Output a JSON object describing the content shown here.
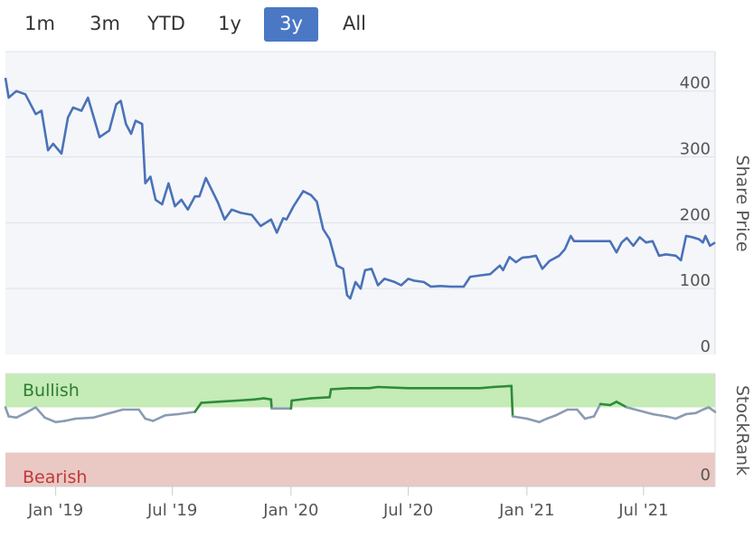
{
  "range_selector": {
    "buttons": [
      "1m",
      "3m",
      "YTD",
      "1y",
      "3y",
      "All"
    ],
    "selected": "3y",
    "accent": "#4a78c4"
  },
  "chart_data": {
    "type": "line",
    "title": "",
    "x_range": [
      "2018-10-15",
      "2021-10-20"
    ],
    "x_tick_labels": [
      {
        "label": "Jan '19",
        "date": "2019-01-01"
      },
      {
        "label": "Jul '19",
        "date": "2019-07-01"
      },
      {
        "label": "Jan '20",
        "date": "2020-01-01"
      },
      {
        "label": "Jul '20",
        "date": "2020-07-01"
      },
      {
        "label": "Jan '21",
        "date": "2021-01-01"
      },
      {
        "label": "Jul '21",
        "date": "2021-07-01"
      }
    ],
    "price_panel": {
      "ylabel": "Share Price",
      "ylim": [
        0,
        460
      ],
      "yticks": [
        0,
        100,
        200,
        300,
        400
      ],
      "color": "#4a72b8",
      "series": [
        {
          "name": "Share Price",
          "points": [
            [
              "2018-10-15",
              420
            ],
            [
              "2018-10-20",
              390
            ],
            [
              "2018-11-01",
              400
            ],
            [
              "2018-11-15",
              395
            ],
            [
              "2018-12-01",
              365
            ],
            [
              "2018-12-10",
              370
            ],
            [
              "2018-12-20",
              310
            ],
            [
              "2018-12-28",
              320
            ],
            [
              "2019-01-10",
              305
            ],
            [
              "2019-01-20",
              360
            ],
            [
              "2019-01-28",
              375
            ],
            [
              "2019-02-10",
              370
            ],
            [
              "2019-02-20",
              390
            ],
            [
              "2019-03-01",
              360
            ],
            [
              "2019-03-10",
              330
            ],
            [
              "2019-03-25",
              340
            ],
            [
              "2019-04-05",
              380
            ],
            [
              "2019-04-12",
              385
            ],
            [
              "2019-04-20",
              350
            ],
            [
              "2019-04-28",
              335
            ],
            [
              "2019-05-05",
              355
            ],
            [
              "2019-05-15",
              350
            ],
            [
              "2019-05-20",
              260
            ],
            [
              "2019-05-28",
              270
            ],
            [
              "2019-06-05",
              235
            ],
            [
              "2019-06-15",
              228
            ],
            [
              "2019-06-25",
              260
            ],
            [
              "2019-07-05",
              225
            ],
            [
              "2019-07-15",
              235
            ],
            [
              "2019-07-25",
              220
            ],
            [
              "2019-08-05",
              240
            ],
            [
              "2019-08-12",
              240
            ],
            [
              "2019-08-22",
              268
            ],
            [
              "2019-09-01",
              248
            ],
            [
              "2019-09-10",
              230
            ],
            [
              "2019-09-20",
              205
            ],
            [
              "2019-10-01",
              220
            ],
            [
              "2019-10-15",
              215
            ],
            [
              "2019-11-01",
              212
            ],
            [
              "2019-11-15",
              195
            ],
            [
              "2019-12-01",
              205
            ],
            [
              "2019-12-10",
              185
            ],
            [
              "2019-12-20",
              207
            ],
            [
              "2019-12-25",
              205
            ],
            [
              "2020-01-05",
              225
            ],
            [
              "2020-01-20",
              248
            ],
            [
              "2020-02-01",
              242
            ],
            [
              "2020-02-10",
              232
            ],
            [
              "2020-02-20",
              190
            ],
            [
              "2020-03-01",
              175
            ],
            [
              "2020-03-12",
              135
            ],
            [
              "2020-03-22",
              130
            ],
            [
              "2020-03-28",
              90
            ],
            [
              "2020-04-02",
              85
            ],
            [
              "2020-04-10",
              110
            ],
            [
              "2020-04-18",
              100
            ],
            [
              "2020-04-25",
              128
            ],
            [
              "2020-05-05",
              130
            ],
            [
              "2020-05-15",
              105
            ],
            [
              "2020-05-25",
              115
            ],
            [
              "2020-06-10",
              110
            ],
            [
              "2020-06-20",
              105
            ],
            [
              "2020-07-01",
              115
            ],
            [
              "2020-07-10",
              112
            ],
            [
              "2020-07-25",
              110
            ],
            [
              "2020-08-05",
              103
            ],
            [
              "2020-08-20",
              104
            ],
            [
              "2020-09-05",
              103
            ],
            [
              "2020-09-25",
              103
            ],
            [
              "2020-10-05",
              118
            ],
            [
              "2020-10-20",
              120
            ],
            [
              "2020-11-05",
              122
            ],
            [
              "2020-11-20",
              135
            ],
            [
              "2020-11-25",
              128
            ],
            [
              "2020-12-05",
              148
            ],
            [
              "2020-12-15",
              140
            ],
            [
              "2020-12-25",
              147
            ],
            [
              "2021-01-05",
              148
            ],
            [
              "2021-01-15",
              150
            ],
            [
              "2021-01-25",
              130
            ],
            [
              "2021-02-05",
              142
            ],
            [
              "2021-02-20",
              150
            ],
            [
              "2021-03-01",
              160
            ],
            [
              "2021-03-10",
              180
            ],
            [
              "2021-03-15",
              172
            ],
            [
              "2021-04-10",
              172
            ],
            [
              "2021-05-01",
              172
            ],
            [
              "2021-05-10",
              172
            ],
            [
              "2021-05-20",
              155
            ],
            [
              "2021-05-28",
              170
            ],
            [
              "2021-06-05",
              177
            ],
            [
              "2021-06-15",
              165
            ],
            [
              "2021-06-25",
              178
            ],
            [
              "2021-07-05",
              170
            ],
            [
              "2021-07-15",
              172
            ],
            [
              "2021-07-25",
              150
            ],
            [
              "2021-08-05",
              152
            ],
            [
              "2021-08-20",
              150
            ],
            [
              "2021-08-28",
              143
            ],
            [
              "2021-09-05",
              180
            ],
            [
              "2021-09-15",
              178
            ],
            [
              "2021-09-25",
              175
            ],
            [
              "2021-10-01",
              170
            ],
            [
              "2021-10-05",
              180
            ],
            [
              "2021-10-12",
              165
            ],
            [
              "2021-10-20",
              170
            ]
          ]
        }
      ]
    },
    "stockrank_panel": {
      "ylabel": "StockRank",
      "ylim": [
        0,
        100
      ],
      "ytick_label": "0",
      "bands": [
        {
          "label": "Bullish",
          "from": 70,
          "to": 100,
          "fill": "#c5ebb6",
          "text_color": "#2e7d32"
        },
        {
          "label": "Bearish",
          "from": 0,
          "to": 30,
          "fill": "#eac8c3",
          "text_color": "#c0393b"
        }
      ],
      "threshold": 70,
      "color_above": "#2e8b3a",
      "color_below": "#8a9bb3",
      "series": [
        {
          "name": "StockRank",
          "points": [
            [
              "2018-10-15",
              70
            ],
            [
              "2018-10-20",
              62
            ],
            [
              "2018-11-01",
              61
            ],
            [
              "2018-11-15",
              65
            ],
            [
              "2018-12-01",
              70
            ],
            [
              "2018-12-15",
              61
            ],
            [
              "2019-01-01",
              57
            ],
            [
              "2019-01-15",
              58
            ],
            [
              "2019-02-01",
              60
            ],
            [
              "2019-03-01",
              61
            ],
            [
              "2019-03-20",
              64
            ],
            [
              "2019-04-15",
              68
            ],
            [
              "2019-05-10",
              68
            ],
            [
              "2019-05-20",
              60
            ],
            [
              "2019-06-01",
              58
            ],
            [
              "2019-06-20",
              63
            ],
            [
              "2019-07-10",
              64
            ],
            [
              "2019-08-05",
              66
            ],
            [
              "2019-08-15",
              74
            ],
            [
              "2019-09-10",
              75
            ],
            [
              "2019-10-10",
              76
            ],
            [
              "2019-11-05",
              77
            ],
            [
              "2019-11-20",
              78
            ],
            [
              "2019-12-01",
              77
            ],
            [
              "2019-12-02",
              69
            ],
            [
              "2020-01-01",
              69
            ],
            [
              "2020-01-02",
              76
            ],
            [
              "2020-02-01",
              78
            ],
            [
              "2020-03-01",
              79
            ],
            [
              "2020-03-03",
              86
            ],
            [
              "2020-04-01",
              87
            ],
            [
              "2020-05-01",
              87
            ],
            [
              "2020-05-15",
              88
            ],
            [
              "2020-07-01",
              87
            ],
            [
              "2020-09-01",
              87
            ],
            [
              "2020-10-20",
              87
            ],
            [
              "2020-11-10",
              88
            ],
            [
              "2020-12-08",
              89
            ],
            [
              "2020-12-10",
              62
            ],
            [
              "2021-01-01",
              60
            ],
            [
              "2021-01-20",
              57
            ],
            [
              "2021-02-01",
              60
            ],
            [
              "2021-02-15",
              63
            ],
            [
              "2021-03-05",
              68
            ],
            [
              "2021-03-20",
              68
            ],
            [
              "2021-04-01",
              60
            ],
            [
              "2021-04-15",
              62
            ],
            [
              "2021-04-25",
              73
            ],
            [
              "2021-05-10",
              72
            ],
            [
              "2021-05-20",
              75
            ],
            [
              "2021-06-05",
              70
            ],
            [
              "2021-06-25",
              67
            ],
            [
              "2021-07-15",
              64
            ],
            [
              "2021-08-05",
              62
            ],
            [
              "2021-08-20",
              60
            ],
            [
              "2021-09-05",
              64
            ],
            [
              "2021-09-20",
              65
            ],
            [
              "2021-10-01",
              68
            ],
            [
              "2021-10-10",
              70
            ],
            [
              "2021-10-20",
              66
            ]
          ]
        }
      ]
    }
  }
}
